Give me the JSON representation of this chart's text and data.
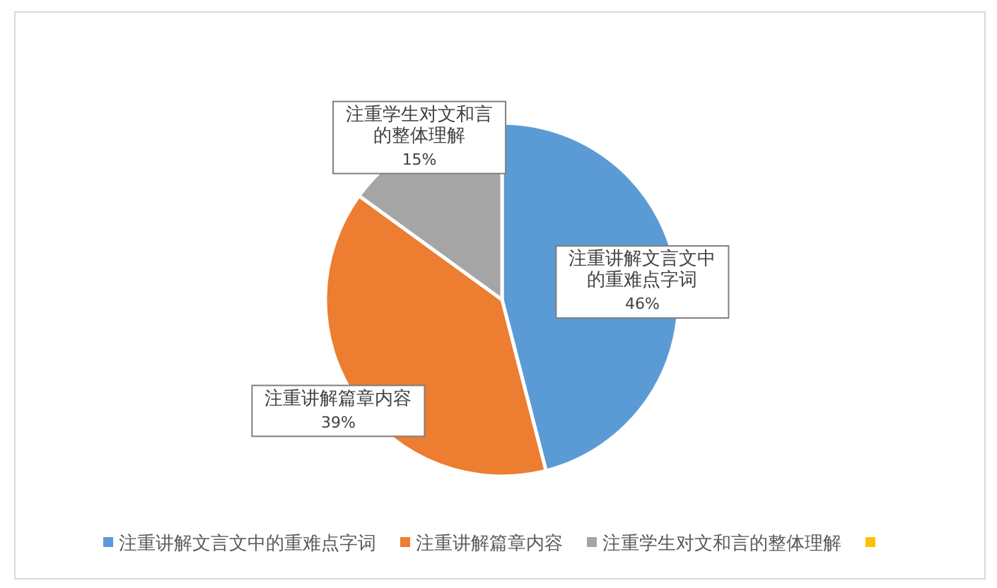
{
  "chart_data": {
    "type": "pie",
    "categories": [
      "注重讲解文言文中的重难点字词",
      "注重讲解篇章内容",
      "注重学生对文和言的整体理解",
      null
    ],
    "values": [
      46,
      39,
      15,
      0
    ],
    "colors": [
      "#5b9bd5",
      "#ed7d31",
      "#a5a5a5",
      "#ffc000"
    ],
    "value_labels": [
      "46%",
      "39%",
      "15%",
      null
    ],
    "legend": "bottom"
  }
}
